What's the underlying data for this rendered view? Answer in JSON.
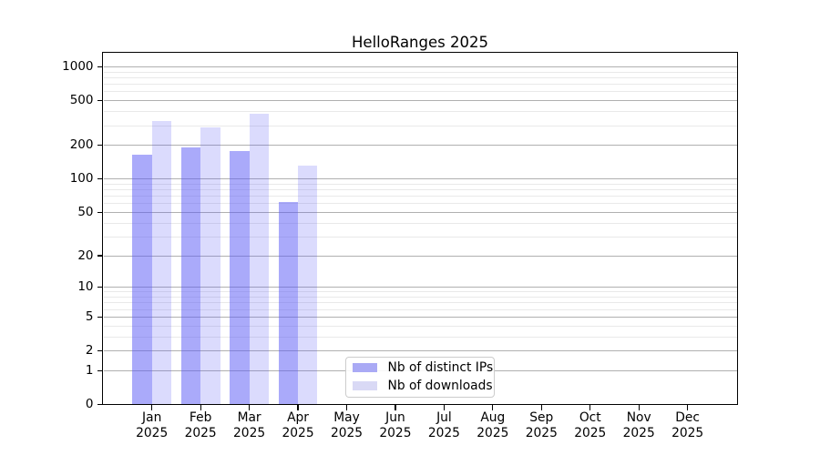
{
  "chart_data": {
    "type": "bar",
    "title": "HelloRanges 2025",
    "categories": [
      "Jan 2025",
      "Feb 2025",
      "Mar 2025",
      "Apr 2025",
      "May 2025",
      "Jun 2025",
      "Jul 2025",
      "Aug 2025",
      "Sep 2025",
      "Oct 2025",
      "Nov 2025",
      "Dec 2025"
    ],
    "series": [
      {
        "name": "Nb of distinct IPs",
        "values": [
          164,
          192,
          179,
          62,
          0,
          0,
          0,
          0,
          0,
          0,
          0,
          0
        ],
        "swatch_color": "#aaaaf5",
        "bar_rgba": "rgba(85,85,245,0.5)"
      },
      {
        "name": "Nb of downloads",
        "values": [
          330,
          287,
          381,
          131,
          0,
          0,
          0,
          0,
          0,
          0,
          0,
          0
        ],
        "swatch_color": "#d9d9f5",
        "bar_rgba": "rgba(85,85,245,0.21)"
      }
    ],
    "xlabel": "",
    "ylabel": "",
    "yscale": "log1p",
    "ylim": [
      0,
      1340
    ],
    "yticks": [
      1000,
      500,
      200,
      100,
      50,
      20,
      10,
      5,
      2,
      1,
      0
    ],
    "yticks_minor": [
      900,
      800,
      700,
      600,
      400,
      300,
      90,
      80,
      70,
      60,
      40,
      30,
      9,
      8,
      7,
      6,
      4,
      3
    ],
    "grid": true,
    "legend_position": "lower center (inside axes)",
    "style": {
      "grid_major_color": "#b0b0b0",
      "grid_minor_color": "#e9e9e9",
      "spine_color": "#000000",
      "background": "#ffffff"
    }
  },
  "months": [
    {
      "m": "Jan",
      "y": "2025"
    },
    {
      "m": "Feb",
      "y": "2025"
    },
    {
      "m": "Mar",
      "y": "2025"
    },
    {
      "m": "Apr",
      "y": "2025"
    },
    {
      "m": "May",
      "y": "2025"
    },
    {
      "m": "Jun",
      "y": "2025"
    },
    {
      "m": "Jul",
      "y": "2025"
    },
    {
      "m": "Aug",
      "y": "2025"
    },
    {
      "m": "Sep",
      "y": "2025"
    },
    {
      "m": "Oct",
      "y": "2025"
    },
    {
      "m": "Nov",
      "y": "2025"
    },
    {
      "m": "Dec",
      "y": "2025"
    }
  ]
}
